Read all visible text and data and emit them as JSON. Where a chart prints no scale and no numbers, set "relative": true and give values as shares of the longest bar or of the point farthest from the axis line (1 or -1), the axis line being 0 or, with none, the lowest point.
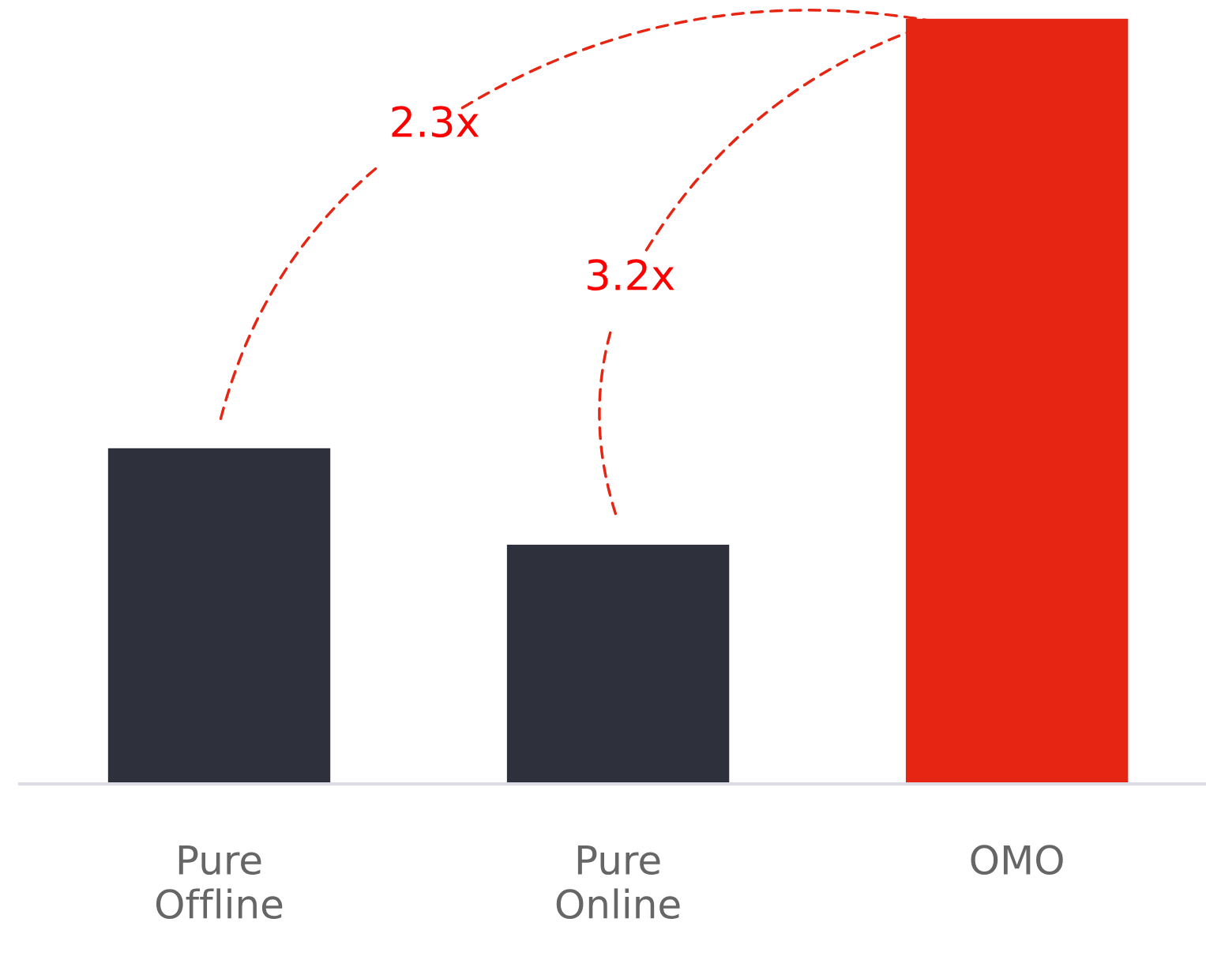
{
  "chart_data": {
    "type": "bar",
    "relative": true,
    "categories": [
      "Pure\nOffline",
      "Pure\nOnline",
      "OMO"
    ],
    "values": [
      0.439,
      0.313,
      1
    ],
    "colors": [
      "#2e303b",
      "#2e303b",
      "#e62512"
    ],
    "annotations": [
      "2.3x",
      "3.2x"
    ],
    "grid": false,
    "legend": false
  }
}
